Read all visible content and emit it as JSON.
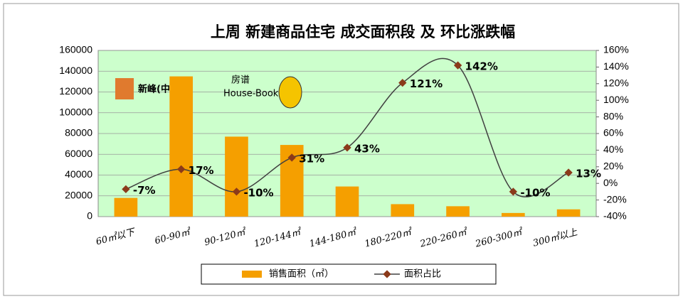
{
  "chart_data": {
    "type": "bar-line",
    "title": "上周 新建商品住宅 成交面积段 及 环比涨跌幅",
    "categories": [
      "60㎡以下",
      "60-90㎡",
      "90-120㎡",
      "120-144㎡",
      "144-180㎡",
      "180-220㎡",
      "220-260㎡",
      "260-300㎡",
      "300㎡以上"
    ],
    "series": [
      {
        "name": "销售面积（㎡）",
        "type": "bar",
        "color": "#f59f00",
        "values": [
          18000,
          135000,
          77000,
          69000,
          29000,
          12000,
          10000,
          3500,
          7000
        ]
      },
      {
        "name": "面积占比",
        "type": "line",
        "axis": "y2",
        "color": "#404040",
        "marker_color": "#8b3a1a",
        "values": [
          -7,
          17,
          -10,
          31,
          43,
          121,
          142,
          -10,
          13
        ],
        "value_labels": [
          "-7%",
          "17%",
          "-10%",
          "31%",
          "43%",
          "121%",
          "142%",
          "-10%",
          "13%"
        ]
      }
    ],
    "ylim": [
      0,
      160000
    ],
    "yticks": [
      0,
      20000,
      40000,
      60000,
      80000,
      100000,
      120000,
      140000,
      160000
    ],
    "y2lim": [
      -40,
      160
    ],
    "y2ticks": [
      {
        "value": -40,
        "label": "-40%"
      },
      {
        "value": -20,
        "label": "-20%"
      },
      {
        "value": 0,
        "label": "0%"
      },
      {
        "value": 20,
        "label": "20%"
      },
      {
        "value": 40,
        "label": "40%"
      },
      {
        "value": 60,
        "label": "60%"
      },
      {
        "value": 80,
        "label": "80%"
      },
      {
        "value": 100,
        "label": "100%"
      },
      {
        "value": 120,
        "label": "120%"
      },
      {
        "value": 140,
        "label": "140%"
      },
      {
        "value": 160,
        "label": "160%"
      }
    ],
    "grid": true,
    "legend": "bottom",
    "annotations": [
      "新峰(中国)",
      "房谱",
      "House-Book"
    ]
  }
}
